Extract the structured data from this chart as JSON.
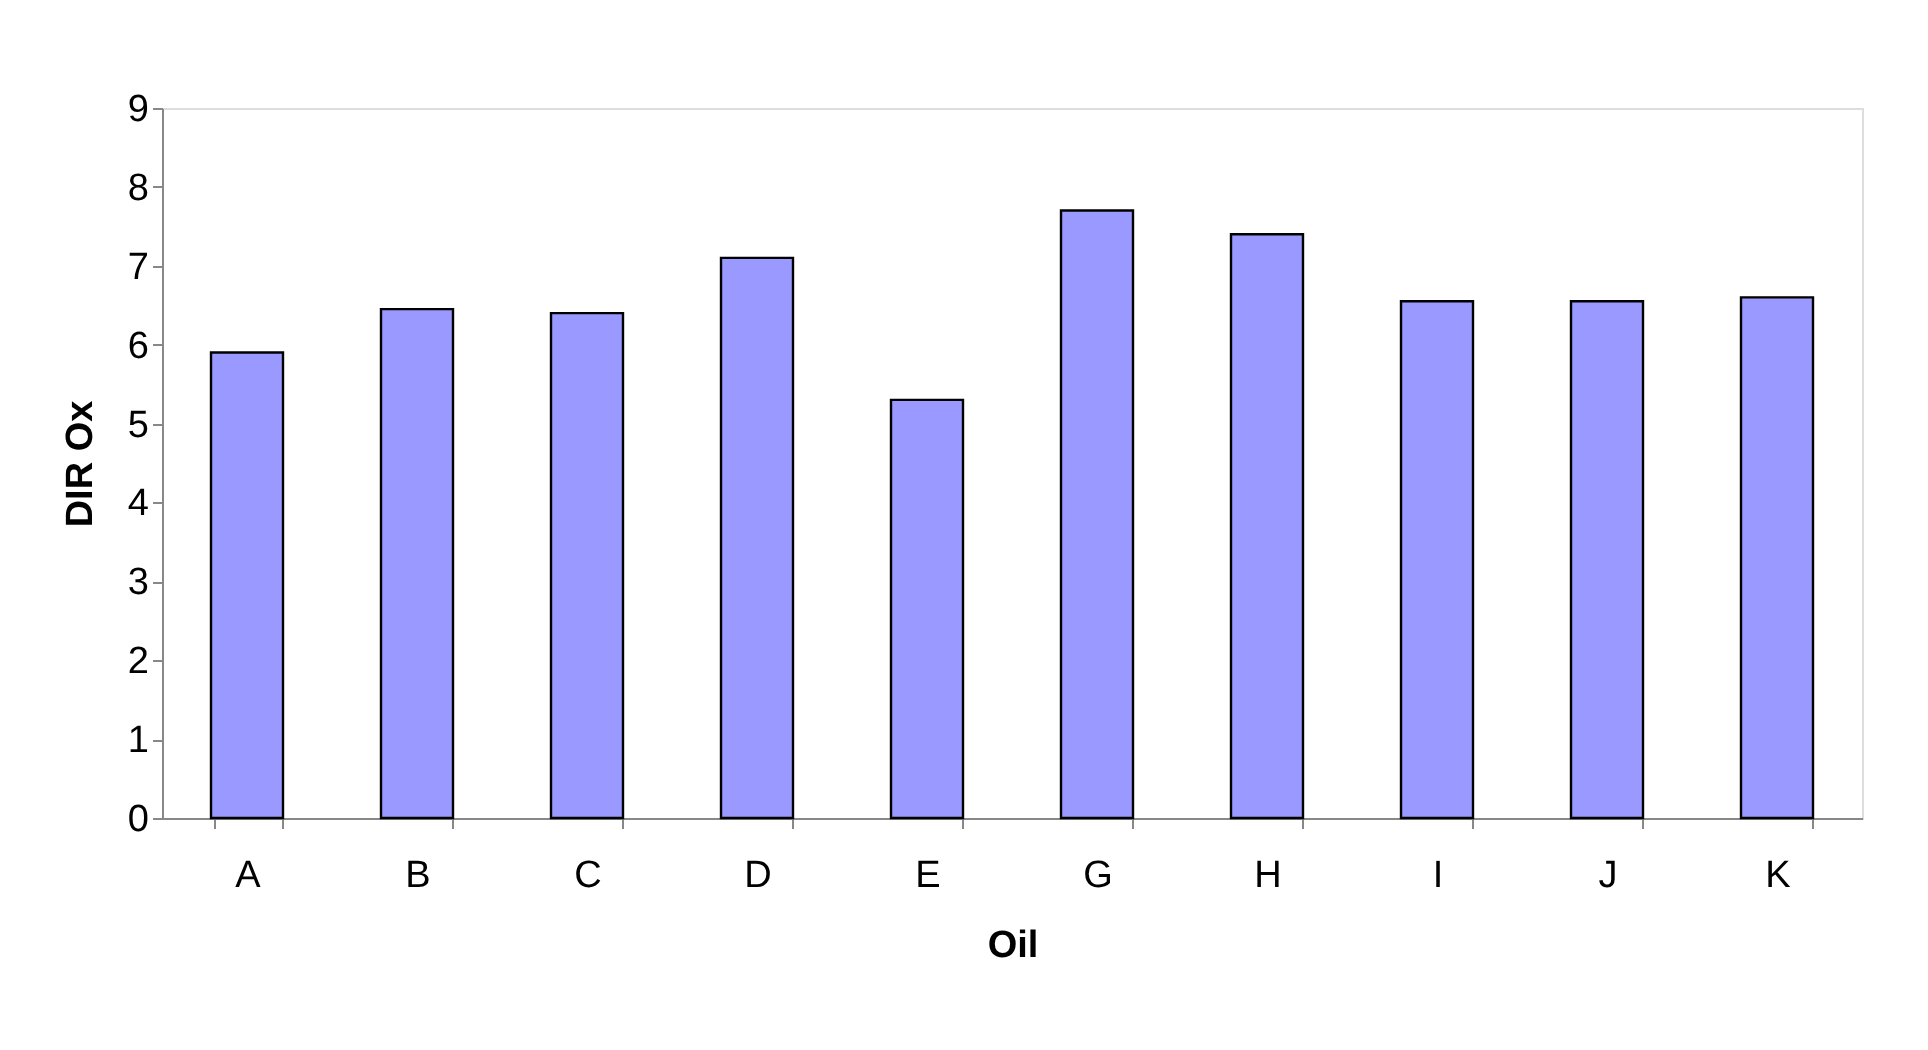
{
  "chart_data": {
    "type": "bar",
    "xlabel": "Oil",
    "ylabel": "DIR Ox",
    "categories": [
      "A",
      "B",
      "C",
      "D",
      "E",
      "G",
      "H",
      "I",
      "J",
      "K"
    ],
    "values": [
      5.9,
      6.45,
      6.4,
      7.1,
      5.3,
      7.7,
      7.4,
      6.55,
      6.55,
      6.6
    ],
    "color": "#9999ff",
    "ylim": [
      0,
      9
    ],
    "yticks": [
      0,
      1,
      2,
      3,
      4,
      5,
      6,
      7,
      8,
      9
    ],
    "grid": false
  }
}
